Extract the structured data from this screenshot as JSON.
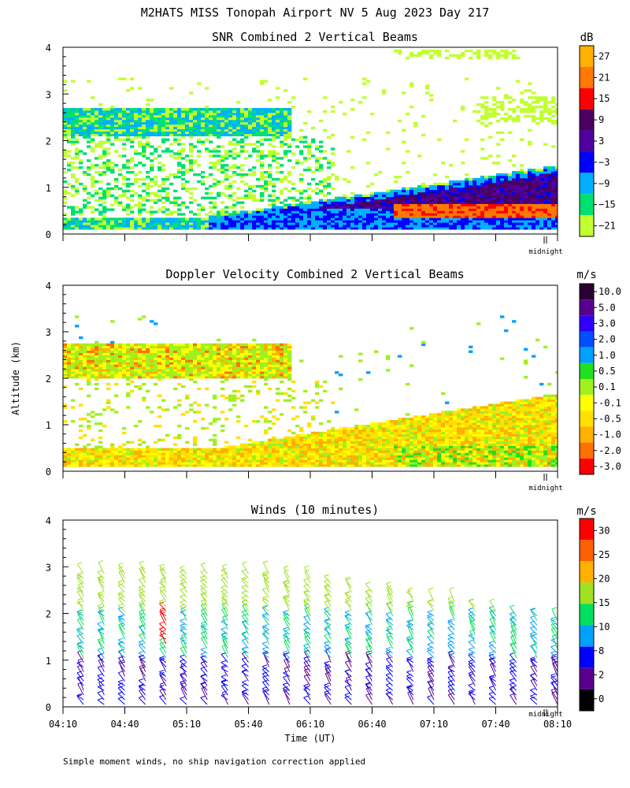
{
  "figure": {
    "title": "M2HATS MISS Tonopah Airport NV   5 Aug 2023 Day 217",
    "ylabel": "Altitude (km)",
    "xlabel": "Time (UT)",
    "footnote": "Simple moment winds, no ship navigation correction applied",
    "midnight_label": "midnight"
  },
  "chart_data": [
    {
      "type": "heatmap",
      "title": "SNR Combined 2 Vertical Beams",
      "ylabel": "Altitude (km)",
      "ylim": [
        0,
        4
      ],
      "yticks": [
        "0",
        "1",
        "2",
        "3",
        "4"
      ],
      "x_range_utc": [
        "04:10",
        "08:10"
      ],
      "colorbar_unit": "dB",
      "colorbar_ticks": [
        "27",
        "21",
        "15",
        "9",
        "3",
        "−3",
        "−9",
        "−15",
        "−21"
      ],
      "colorbar_colors": [
        "#ffb000",
        "#ff7800",
        "#ff0000",
        "#4a0060",
        "#5000a0",
        "#0000ff",
        "#00b0ff",
        "#00e070",
        "#c0ff30"
      ],
      "features": {
        "upper_layer_km": [
          2.2,
          2.6
        ],
        "boundary_layer_growth_km": [
          0.3,
          1.3
        ],
        "max_snr_region_km": [
          0.3,
          0.7
        ],
        "max_snr_time_utc": [
          "06:50",
          "08:10"
        ]
      }
    },
    {
      "type": "heatmap",
      "title": "Doppler Velocity Combined 2 Vertical Beams",
      "ylabel": "Altitude (km)",
      "ylim": [
        0,
        4
      ],
      "yticks": [
        "0",
        "1",
        "2",
        "3",
        "4"
      ],
      "x_range_utc": [
        "04:10",
        "08:10"
      ],
      "colorbar_unit": "m/s",
      "colorbar_ticks": [
        "10.0",
        "5.0",
        "3.0",
        "2.0",
        "1.0",
        "0.5",
        "0.1",
        "-0.1",
        "-0.5",
        "-1.0",
        "-2.0",
        "-3.0"
      ],
      "colorbar_colors": [
        "#2a0030",
        "#5a0090",
        "#3000ff",
        "#0050ff",
        "#00a0ff",
        "#20e020",
        "#a0f020",
        "#ffff00",
        "#ffe000",
        "#ffb000",
        "#ff7000",
        "#ff0000"
      ]
    },
    {
      "type": "wind_barbs",
      "title": "Winds (10 minutes)",
      "ylabel": "Altitude (km)",
      "ylim": [
        0,
        4
      ],
      "yticks": [
        "0",
        "1",
        "2",
        "3",
        "4"
      ],
      "xlabel": "Time (UT)",
      "xticks": [
        "04:10",
        "04:40",
        "05:10",
        "05:40",
        "06:10",
        "06:40",
        "07:10",
        "07:40",
        "08:10"
      ],
      "colorbar_unit": "m/s",
      "colorbar_ticks": [
        "30",
        "25",
        "20",
        "15",
        "10",
        "8",
        "2",
        "0"
      ],
      "colorbar_colors": [
        "#ff0000",
        "#ff6000",
        "#ffb000",
        "#a0e020",
        "#00e060",
        "#00a0ff",
        "#0000ff",
        "#5a0090",
        "#000000"
      ],
      "profile_times_min": [
        10,
        20,
        30,
        40,
        50,
        60,
        70,
        80,
        90,
        100,
        110,
        120,
        130,
        140,
        150,
        160,
        170,
        180,
        190,
        200,
        210,
        220,
        230,
        240
      ]
    }
  ]
}
